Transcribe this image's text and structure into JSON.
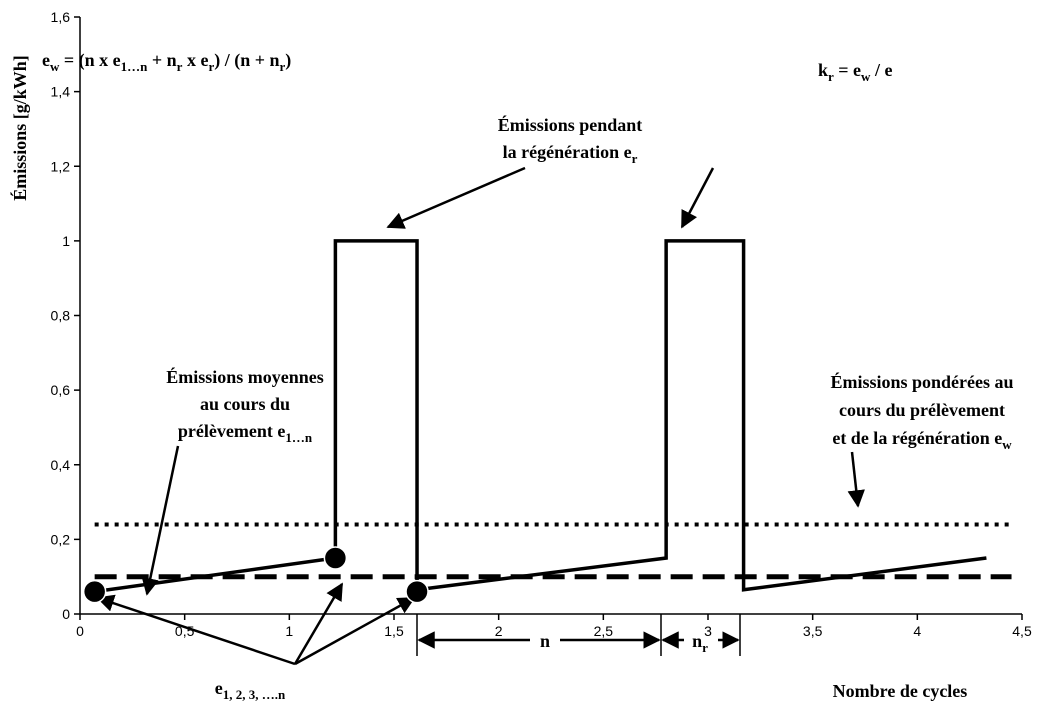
{
  "chart_data": {
    "type": "line",
    "xlabel": "Nombre de cycles",
    "ylabel": "Émissions [g/kWh]",
    "xlim": [
      0,
      4.5
    ],
    "ylim": [
      0,
      1.6
    ],
    "xticks": [
      0,
      {
        "value": 0.5,
        "label": "0,5"
      },
      1,
      {
        "value": 1.5,
        "label": "1,5"
      },
      2,
      {
        "value": 2.5,
        "label": "2,5"
      },
      3,
      {
        "value": 3.5,
        "label": "3,5"
      },
      4,
      {
        "value": 4.5,
        "label": "4,5"
      }
    ],
    "yticks": [
      0,
      {
        "value": 0.2,
        "label": "0,2"
      },
      {
        "value": 0.4,
        "label": "0,4"
      },
      {
        "value": 0.6,
        "label": "0,6"
      },
      {
        "value": 0.8,
        "label": "0,8"
      },
      1,
      {
        "value": 1.2,
        "label": "1,2"
      },
      {
        "value": 1.4,
        "label": "1,4"
      },
      {
        "value": 1.6,
        "label": "1,6"
      }
    ],
    "series": [
      {
        "style": "solid",
        "color": "#000000",
        "x": [
          0.07,
          1.22,
          1.22,
          1.61,
          1.61,
          2.8,
          2.8,
          3.17,
          3.17,
          4.33
        ],
        "values": [
          0.06,
          0.15,
          1,
          1,
          0.065,
          0.15,
          1,
          1,
          0.065,
          0.15
        ]
      },
      {
        "style": "dashed",
        "color": "#000000",
        "x": [
          0.07,
          4.45
        ],
        "values": [
          0.1,
          0.1
        ]
      },
      {
        "style": "dotted",
        "color": "#000000",
        "x": [
          0.07,
          4.45
        ],
        "values": [
          0.24,
          0.24
        ]
      }
    ],
    "points": {
      "color": "#000000",
      "x": [
        0.07,
        1.22,
        1.61
      ],
      "values": [
        0.06,
        0.15,
        0.06
      ]
    },
    "annotations": [
      [
        [
          "e",
          "w",
          " = (n x e",
          "1…n",
          " + n",
          "r",
          " x e",
          "r",
          ") / (n + n",
          "r",
          ")"
        ]
      ],
      [
        [
          "k",
          "r",
          " = e",
          "w",
          " / e"
        ]
      ],
      [
        [
          "Émissions pendant"
        ],
        [
          "la régénération e",
          "r"
        ]
      ],
      [
        [
          "Émissions moyennes"
        ],
        [
          "au cours du"
        ],
        [
          "prélèvement e",
          "1…n"
        ]
      ],
      [
        [
          "Émissions pondérées au"
        ],
        [
          "cours du prélèvement"
        ],
        [
          "et de la régénération e",
          "w"
        ]
      ],
      [
        [
          "e",
          "1, 2, 3, ….n"
        ]
      ],
      [
        [
          "n"
        ]
      ],
      [
        [
          "n",
          "r"
        ]
      ]
    ]
  }
}
